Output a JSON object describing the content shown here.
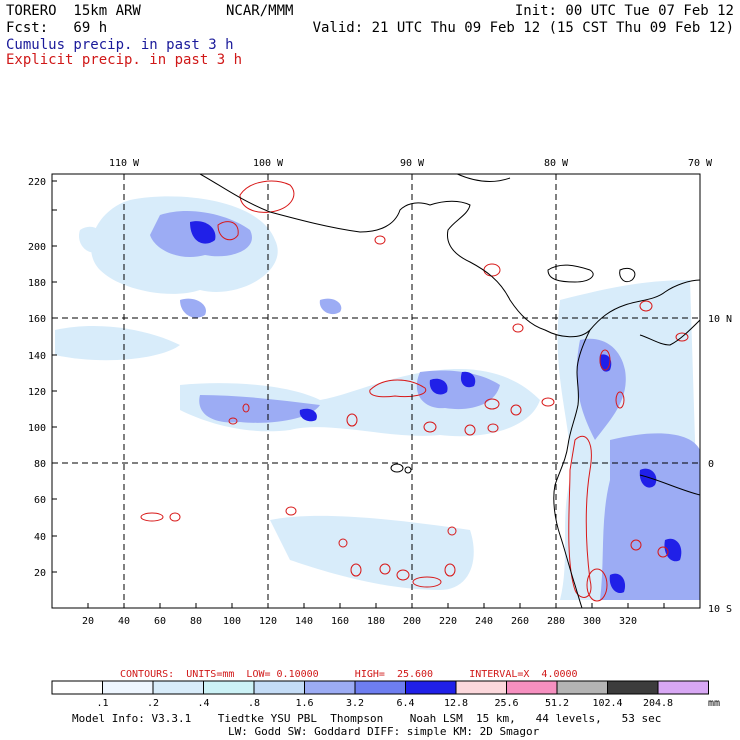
{
  "header": {
    "model": "TORERO  15km ARW",
    "org": "NCAR/MMM",
    "init": "Init: 00 UTC Tue 07 Feb 12",
    "fcst": "Fcst:   69 h",
    "valid": "Valid: 21 UTC Thu 09 Feb 12 (15 CST Thu 09 Feb 12)"
  },
  "legend": {
    "cumulus": "Cumulus precip. in past 3 h",
    "explicit": "Explicit precip. in past 3 h",
    "cumulus_color": "#1a1a9a",
    "explicit_color": "#d01818"
  },
  "map": {
    "lon_labels": [
      "110 W",
      "100 W",
      "90 W",
      "80 W",
      "70 W"
    ],
    "lat_labels": [
      "10 N",
      "0",
      "10 S"
    ],
    "x_ticks": [
      "20",
      "40",
      "60",
      "80",
      "100",
      "120",
      "140",
      "160",
      "180",
      "200",
      "220",
      "240",
      "260",
      "280",
      "300",
      "320"
    ],
    "y_ticks": [
      "20",
      "40",
      "60",
      "80",
      "100",
      "120",
      "140",
      "160",
      "180",
      "200",
      "220"
    ]
  },
  "contours_line": {
    "label": "CONTOURS:  UNITS=mm  LOW= 0.10000      HIGH=  25.600      INTERVAL=X  4.0000"
  },
  "colorbar": {
    "colors": [
      "#ffffff",
      "#eef6ff",
      "#d8ecfa",
      "#ccf2f6",
      "#c4dcf6",
      "#9cacf4",
      "#6e7ef0",
      "#2020e8",
      "#fcd8dc",
      "#f690c0",
      "#b4b4b4",
      "#3c3c3c",
      "#d8a8f4"
    ],
    "labels": [
      ".1",
      ".2",
      ".4",
      ".8",
      "1.6",
      "3.2",
      "6.4",
      "12.8",
      "25.6",
      "51.2",
      "102.4",
      "204.8"
    ],
    "units": "mm"
  },
  "model_info": {
    "line1": "Model Info: V3.3.1    Tiedtke YSU PBL  Thompson    Noah LSM  15 km,   44 levels,   53 sec",
    "line2": "LW: Godd SW: Goddard DIFF: simple KM: 2D Smagor"
  }
}
